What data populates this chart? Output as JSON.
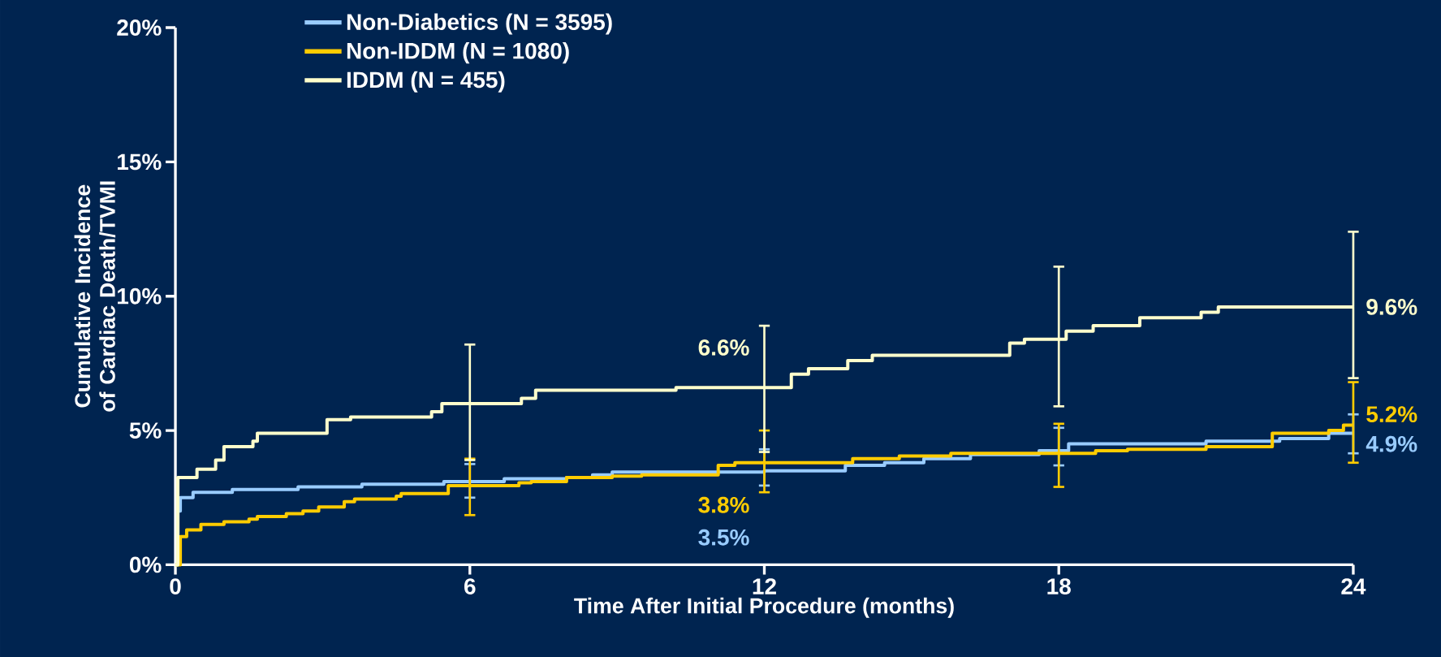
{
  "chart_data": {
    "type": "step",
    "xlabel": "Time After Initial Procedure (months)",
    "ylabel": "Cumulative Incidence of Cardiac Death/TVMI",
    "xlim": [
      0,
      24
    ],
    "xticks": [
      0,
      6,
      12,
      18,
      24
    ],
    "ylim": [
      0,
      20
    ],
    "yticks": [
      {
        "value": 0,
        "label": "0%"
      },
      {
        "value": 5,
        "label": "5%"
      },
      {
        "value": 10,
        "label": "10%"
      },
      {
        "value": 15,
        "label": "15%"
      },
      {
        "value": 20,
        "label": "20%"
      }
    ],
    "legend": "top left",
    "grid": false,
    "marker": "none",
    "line_style": "solid",
    "series": [
      {
        "name": "Non-Diabetics (N = 3595)",
        "color": "#99ccff",
        "x": [
          0,
          0.05,
          0.1,
          0.36,
          1.16,
          2.5,
          3.8,
          5.47,
          6,
          6.7,
          7.97,
          8.5,
          8.9,
          12,
          13.65,
          14.45,
          15.25,
          16.2,
          17.6,
          18,
          18.2,
          21.0,
          22.5,
          23.5,
          24
        ],
        "values": [
          0,
          2.0,
          2.5,
          2.7,
          2.8,
          2.9,
          3.0,
          3.1,
          3.1,
          3.2,
          3.25,
          3.35,
          3.45,
          3.5,
          3.7,
          3.8,
          3.95,
          4.1,
          4.25,
          4.25,
          4.5,
          4.6,
          4.7,
          4.9,
          4.9
        ],
        "errors": [
          null,
          null,
          null,
          null,
          null,
          null,
          null,
          null,
          [
            2.5,
            3.75
          ],
          null,
          null,
          null,
          null,
          [
            2.95,
            4.3
          ],
          null,
          null,
          null,
          null,
          null,
          [
            3.7,
            5.1
          ],
          null,
          null,
          null,
          null,
          [
            4.15,
            5.6
          ]
        ],
        "value_labels": [
          null,
          null,
          null,
          null,
          null,
          null,
          null,
          null,
          null,
          null,
          null,
          null,
          null,
          "3.5%",
          null,
          null,
          null,
          null,
          null,
          null,
          null,
          null,
          null,
          null,
          "4.9%"
        ]
      },
      {
        "name": "Non-IDDM (N = 1080)",
        "color": "#ffcc00",
        "x": [
          0,
          0.1,
          0.23,
          0.52,
          0.99,
          1.5,
          1.67,
          2.26,
          2.6,
          2.92,
          3.44,
          3.65,
          4.5,
          4.6,
          5.56,
          6,
          7.0,
          7.25,
          7.97,
          8.9,
          9.5,
          11.06,
          11.4,
          12,
          13.8,
          14.75,
          15.8,
          18,
          18.75,
          19.4,
          21.0,
          22.35,
          23.5,
          23.8,
          24
        ],
        "values": [
          0,
          1.05,
          1.3,
          1.5,
          1.6,
          1.7,
          1.8,
          1.9,
          2.0,
          2.15,
          2.35,
          2.45,
          2.55,
          2.65,
          2.95,
          2.95,
          3.05,
          3.1,
          3.25,
          3.3,
          3.35,
          3.7,
          3.8,
          3.8,
          3.95,
          4.05,
          4.15,
          4.15,
          4.25,
          4.3,
          4.4,
          4.9,
          5.0,
          5.2,
          5.2
        ],
        "errors": [
          null,
          null,
          null,
          null,
          null,
          null,
          null,
          null,
          null,
          null,
          null,
          null,
          null,
          null,
          null,
          [
            1.85,
            3.95
          ],
          null,
          null,
          null,
          null,
          null,
          null,
          null,
          [
            2.7,
            5.0
          ],
          null,
          null,
          null,
          [
            2.9,
            5.25
          ],
          null,
          null,
          null,
          null,
          null,
          null,
          [
            3.8,
            6.8
          ]
        ],
        "value_labels": [
          null,
          null,
          null,
          null,
          null,
          null,
          null,
          null,
          null,
          null,
          null,
          null,
          null,
          null,
          null,
          null,
          null,
          null,
          null,
          null,
          null,
          null,
          null,
          "3.8%",
          null,
          null,
          null,
          null,
          null,
          null,
          null,
          null,
          null,
          null,
          "5.2%"
        ]
      },
      {
        "name": "IDDM (N = 455)",
        "color": "#ffffcc",
        "x": [
          0,
          0.05,
          0.44,
          0.82,
          0.99,
          1.58,
          1.67,
          3.09,
          3.57,
          5.22,
          5.43,
          6,
          7.05,
          7.34,
          10.2,
          12,
          12.55,
          12.9,
          13.7,
          14.2,
          17.0,
          17.3,
          18,
          18.15,
          18.7,
          19.65,
          20.9,
          21.25,
          24
        ],
        "values": [
          0,
          3.25,
          3.56,
          3.9,
          4.4,
          4.6,
          4.9,
          5.4,
          5.5,
          5.7,
          6.0,
          6.0,
          6.2,
          6.5,
          6.6,
          6.6,
          7.1,
          7.3,
          7.6,
          7.8,
          8.25,
          8.4,
          8.4,
          8.7,
          8.9,
          9.2,
          9.4,
          9.6,
          9.6
        ],
        "errors": [
          null,
          null,
          null,
          null,
          null,
          null,
          null,
          null,
          null,
          null,
          null,
          [
            3.9,
            8.2
          ],
          null,
          null,
          null,
          [
            4.2,
            8.9
          ],
          null,
          null,
          null,
          null,
          null,
          null,
          [
            5.9,
            11.1
          ],
          null,
          null,
          null,
          null,
          null,
          [
            6.95,
            12.4
          ]
        ],
        "value_labels": [
          null,
          null,
          null,
          null,
          null,
          null,
          null,
          null,
          null,
          null,
          null,
          null,
          null,
          null,
          null,
          "6.6%",
          null,
          null,
          null,
          null,
          null,
          null,
          null,
          null,
          null,
          null,
          null,
          null,
          "9.6%"
        ]
      }
    ]
  }
}
